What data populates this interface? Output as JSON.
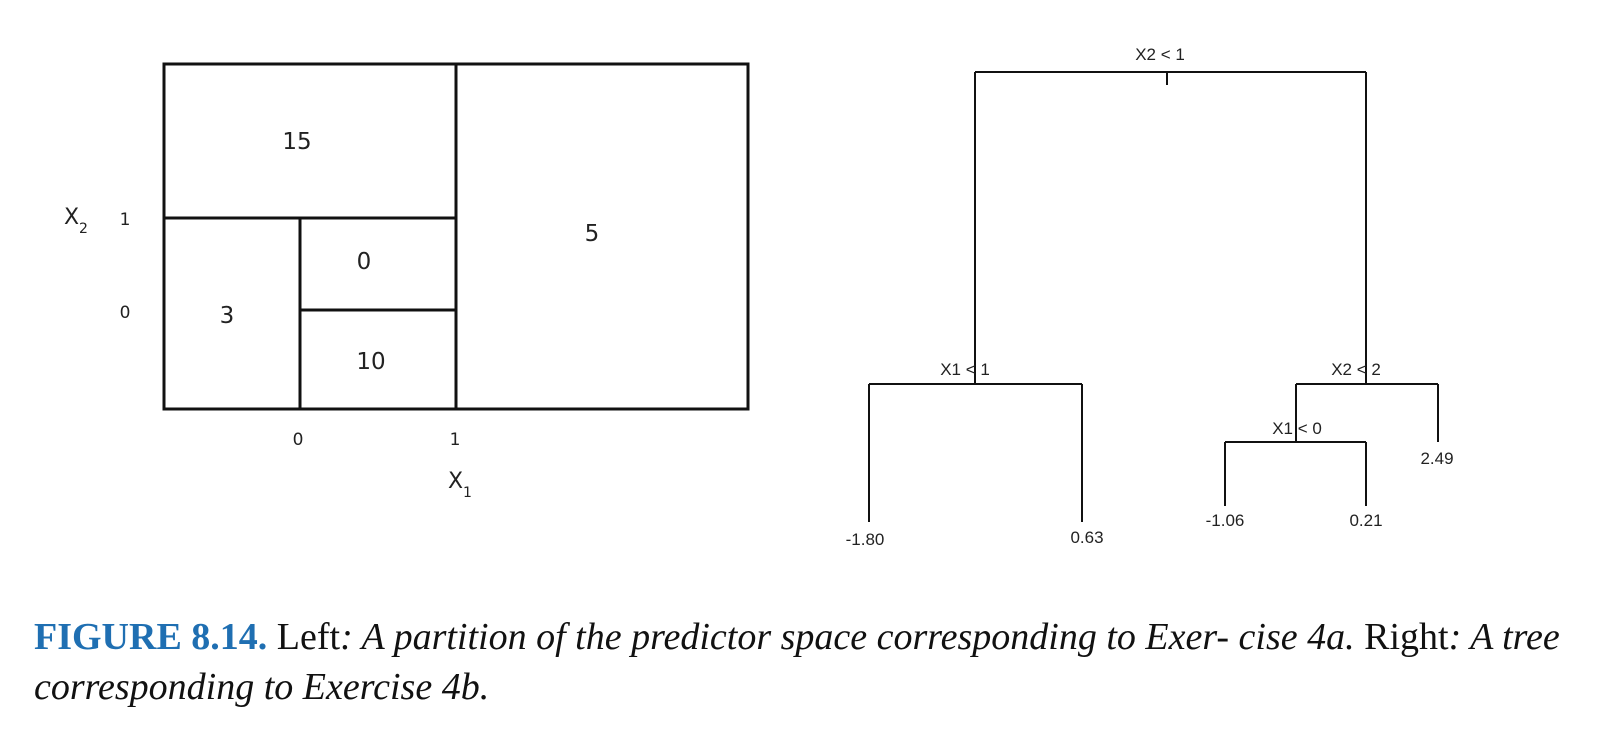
{
  "left_panel": {
    "region_values": [
      "15",
      "3",
      "0",
      "10",
      "5"
    ],
    "x1_ticks": [
      "0",
      "1"
    ],
    "x2_ticks": [
      "1",
      "0"
    ],
    "x1_label": "X",
    "x1_sub": "1",
    "x2_label": "X",
    "x2_sub": "2"
  },
  "right_panel": {
    "splits": {
      "root": "X2 < 1",
      "left": "X1 < 1",
      "right": "X2 < 2",
      "right_left": "X1 < 0"
    },
    "leaves": [
      "-1.80",
      "0.63",
      "-1.06",
      "0.21",
      "2.49"
    ]
  },
  "caption": {
    "figure_label": "FIGURE 8.14.",
    "left_word": "Left",
    "left_text": ": A partition of the predictor space corresponding to Exer- cise 4a.",
    "right_word": "Right",
    "right_text": ": A tree corresponding to Exercise 4b."
  },
  "colors": {
    "figure_label": "#1f6fb2",
    "lines": "#111111"
  }
}
